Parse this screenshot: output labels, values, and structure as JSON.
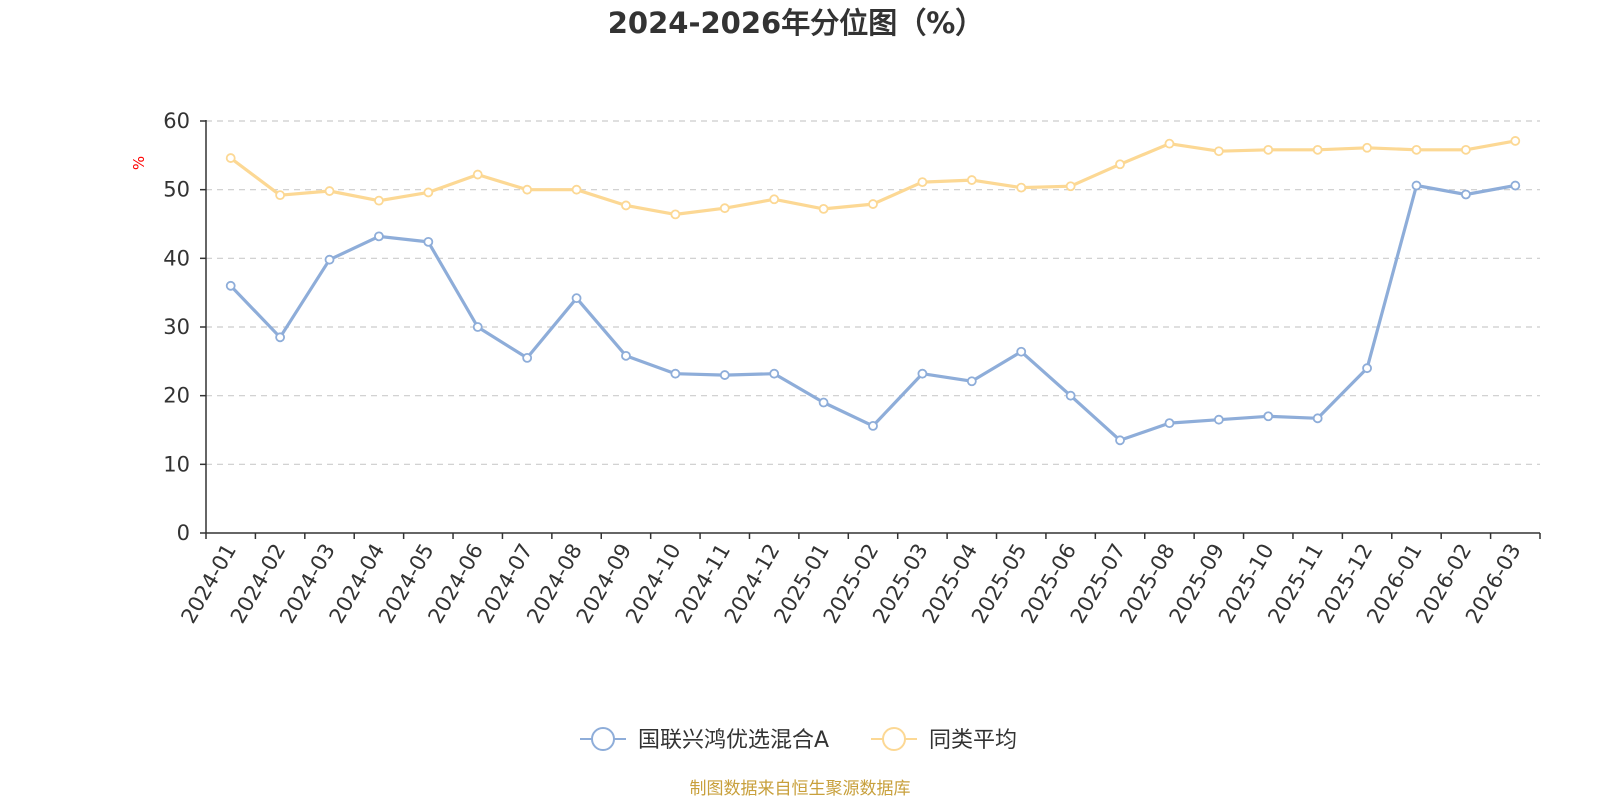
{
  "chart_data": {
    "type": "line",
    "title": "2024-2026年分位图（%）",
    "ylabel": "%",
    "ylim": [
      0,
      60
    ],
    "yticks": [
      0,
      10,
      20,
      30,
      40,
      50,
      60
    ],
    "grid": true,
    "legend_position": "bottom",
    "categories": [
      "2024-01",
      "2024-02",
      "2024-03",
      "2024-04",
      "2024-05",
      "2024-06",
      "2024-07",
      "2024-08",
      "2024-09",
      "2024-10",
      "2024-11",
      "2024-12",
      "2025-01",
      "2025-02",
      "2025-03",
      "2025-04",
      "2025-05",
      "2025-06",
      "2025-07",
      "2025-08",
      "2025-09",
      "2025-10",
      "2025-11",
      "2025-12",
      "2026-01",
      "2026-02",
      "2026-03"
    ],
    "series": [
      {
        "name": "国联兴鸿优选混合A",
        "color": "#8eadd9",
        "values": [
          36.0,
          28.5,
          39.8,
          43.2,
          42.4,
          30.0,
          25.5,
          34.2,
          25.8,
          23.2,
          23.0,
          23.2,
          19.0,
          15.6,
          23.2,
          22.1,
          26.4,
          20.0,
          13.5,
          16.0,
          16.5,
          17.0,
          16.7,
          24.0,
          50.6,
          49.3,
          50.6
        ]
      },
      {
        "name": "同类平均",
        "color": "#fcd894",
        "values": [
          54.6,
          49.2,
          49.8,
          48.4,
          49.6,
          52.2,
          50.0,
          50.0,
          47.7,
          46.4,
          47.3,
          48.6,
          47.2,
          47.9,
          51.1,
          51.4,
          50.3,
          50.5,
          53.7,
          56.7,
          55.6,
          55.8,
          55.8,
          56.1,
          55.8,
          55.8,
          57.1
        ]
      }
    ]
  },
  "source_text": "制图数据来自恒生聚源数据库",
  "colors": {
    "axis": "#333333",
    "grid": "#cccccc",
    "ylabel": "#ff0000",
    "source": "#c8a03c"
  }
}
